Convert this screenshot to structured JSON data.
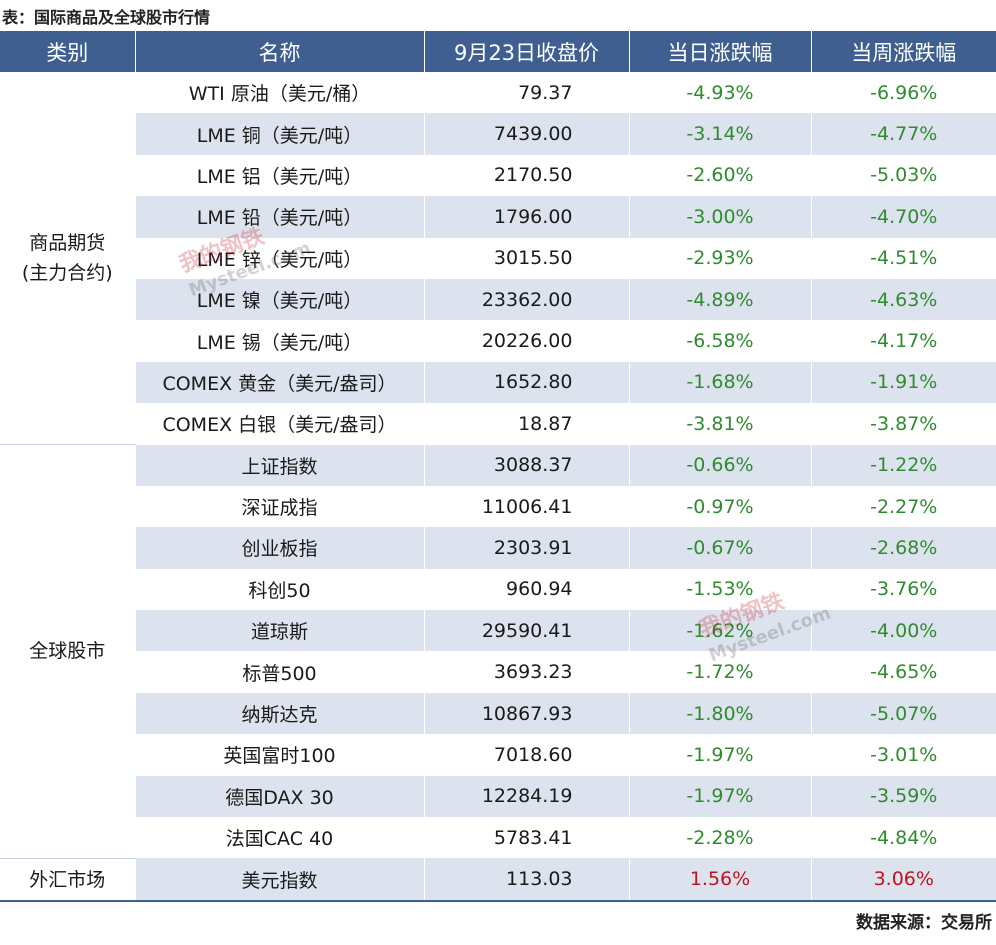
{
  "caption": "表：国际商品及全球股市行情",
  "source": "数据来源：交易所",
  "headers": [
    "类别",
    "名称",
    "9月23日收盘价",
    "当日涨跌幅",
    "当周涨跌幅"
  ],
  "categories": [
    {
      "label": "商品期货\n(主力合约)",
      "rows": [
        {
          "name": "WTI 原油（美元/桶）",
          "price": "79.37",
          "day": "-4.93%",
          "week": "-6.96%"
        },
        {
          "name": "LME 铜（美元/吨）",
          "price": "7439.00",
          "day": "-3.14%",
          "week": "-4.77%"
        },
        {
          "name": "LME 铝（美元/吨）",
          "price": "2170.50",
          "day": "-2.60%",
          "week": "-5.03%"
        },
        {
          "name": "LME 铅（美元/吨）",
          "price": "1796.00",
          "day": "-3.00%",
          "week": "-4.70%"
        },
        {
          "name": "LME 锌（美元/吨）",
          "price": "3015.50",
          "day": "-2.93%",
          "week": "-4.51%"
        },
        {
          "name": "LME 镍（美元/吨）",
          "price": "23362.00",
          "day": "-4.89%",
          "week": "-4.63%"
        },
        {
          "name": "LME 锡（美元/吨）",
          "price": "20226.00",
          "day": "-6.58%",
          "week": "-4.17%"
        },
        {
          "name": "COMEX 黄金（美元/盎司）",
          "price": "1652.80",
          "day": "-1.68%",
          "week": "-1.91%"
        },
        {
          "name": "COMEX 白银（美元/盎司）",
          "price": "18.87",
          "day": "-3.81%",
          "week": "-3.87%"
        }
      ]
    },
    {
      "label": "全球股市",
      "rows": [
        {
          "name": "上证指数",
          "price": "3088.37",
          "day": "-0.66%",
          "week": "-1.22%"
        },
        {
          "name": "深证成指",
          "price": "11006.41",
          "day": "-0.97%",
          "week": "-2.27%"
        },
        {
          "name": "创业板指",
          "price": "2303.91",
          "day": "-0.67%",
          "week": "-2.68%"
        },
        {
          "name": "科创50",
          "price": "960.94",
          "day": "-1.53%",
          "week": "-3.76%"
        },
        {
          "name": "道琼斯",
          "price": "29590.41",
          "day": "-1.62%",
          "week": "-4.00%"
        },
        {
          "name": "标普500",
          "price": "3693.23",
          "day": "-1.72%",
          "week": "-4.65%"
        },
        {
          "name": "纳斯达克",
          "price": "10867.93",
          "day": "-1.80%",
          "week": "-5.07%"
        },
        {
          "name": "英国富时100",
          "price": "7018.60",
          "day": "-1.97%",
          "week": "-3.01%"
        },
        {
          "name": "德国DAX 30",
          "price": "12284.19",
          "day": "-1.97%",
          "week": "-3.59%"
        },
        {
          "name": "法国CAC 40",
          "price": "5783.41",
          "day": "-2.28%",
          "week": "-4.84%"
        }
      ]
    },
    {
      "label": "外汇市场",
      "rows": [
        {
          "name": "美元指数",
          "price": "113.03",
          "day": "1.56%",
          "week": "3.06%"
        }
      ]
    }
  ],
  "watermark": [
    "我的钢铁",
    "Mysteel.com"
  ],
  "colors": {
    "header": "#3e5f8f",
    "stripe": "#dde3ee",
    "negative": "#2e8b2e",
    "positive": "#c0141c"
  }
}
